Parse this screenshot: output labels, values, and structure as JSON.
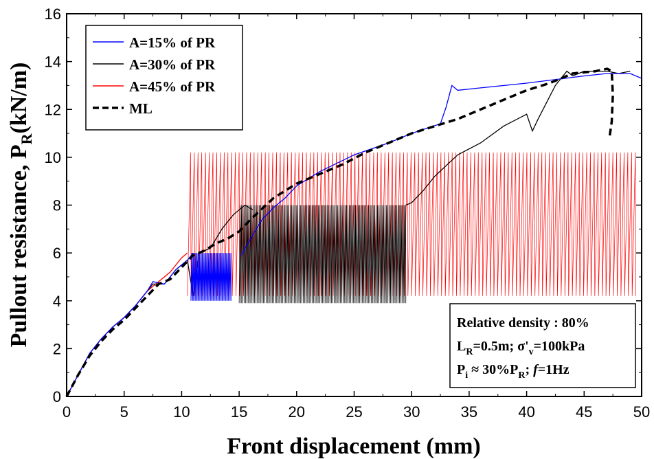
{
  "chart_data": {
    "type": "line",
    "xlabel": "Front displacement (mm)",
    "ylabel": {
      "main": "Pullout resistance, P",
      "sub": "R",
      "unit": "(kN/m)"
    },
    "xlim": [
      0,
      50
    ],
    "ylim": [
      0,
      16
    ],
    "xticks": [
      0,
      5,
      10,
      15,
      20,
      25,
      30,
      35,
      40,
      45,
      50
    ],
    "yticks": [
      0,
      2,
      4,
      6,
      8,
      10,
      12,
      14,
      16
    ],
    "grid": false,
    "legend_position": "top-left",
    "series": [
      {
        "name": "A=15% of PR",
        "color": "#0000ff",
        "style": "solid",
        "monotonic": [
          [
            0,
            0
          ],
          [
            1,
            0.9
          ],
          [
            2,
            1.8
          ],
          [
            3,
            2.4
          ],
          [
            4,
            2.9
          ],
          [
            5,
            3.3
          ],
          [
            6,
            3.8
          ],
          [
            7,
            4.4
          ],
          [
            7.5,
            4.8
          ],
          [
            8.5,
            4.7
          ],
          [
            9.5,
            5.3
          ],
          [
            10.5,
            5.7
          ],
          [
            11,
            6.0
          ]
        ],
        "cyclic": {
          "x_start": 10.8,
          "x_end": 14.3,
          "y_min": 4.0,
          "y_max": 6.0,
          "cycles": 45
        },
        "post": [
          [
            15.2,
            5.9
          ],
          [
            16,
            6.6
          ],
          [
            17,
            7.4
          ],
          [
            18,
            7.9
          ],
          [
            19,
            8.3
          ],
          [
            20,
            8.8
          ],
          [
            22,
            9.4
          ],
          [
            25,
            10.1
          ],
          [
            28,
            10.6
          ],
          [
            30,
            11.0
          ],
          [
            32.5,
            11.4
          ],
          [
            33,
            12.1
          ],
          [
            33.5,
            13.0
          ],
          [
            34,
            12.8
          ],
          [
            36,
            12.9
          ],
          [
            40,
            13.1
          ],
          [
            45,
            13.4
          ],
          [
            47,
            13.5
          ],
          [
            49,
            13.5
          ],
          [
            50,
            13.3
          ]
        ]
      },
      {
        "name": "A=30% of PR",
        "color": "#000000",
        "style": "solid",
        "monotonic": [
          [
            0,
            0
          ],
          [
            1,
            0.9
          ],
          [
            2,
            1.8
          ],
          [
            3,
            2.4
          ],
          [
            4,
            2.9
          ],
          [
            5,
            3.3
          ],
          [
            6,
            3.8
          ],
          [
            7,
            4.4
          ],
          [
            7.5,
            4.7
          ],
          [
            8.5,
            4.7
          ],
          [
            9.5,
            5.3
          ],
          [
            10.5,
            5.7
          ],
          [
            11,
            4.2
          ],
          [
            11.5,
            6.0
          ],
          [
            12.5,
            6.2
          ],
          [
            13.5,
            7.0
          ],
          [
            14.5,
            7.6
          ],
          [
            15.5,
            8.0
          ],
          [
            16.2,
            7.8
          ]
        ],
        "cyclic": {
          "x_start": 15.0,
          "x_end": 29.5,
          "y_min": 3.9,
          "y_max": 8.0,
          "cycles": 130
        },
        "post": [
          [
            29.5,
            8.0
          ],
          [
            30,
            8.1
          ],
          [
            31,
            8.6
          ],
          [
            32,
            9.2
          ],
          [
            34,
            10.1
          ],
          [
            36,
            10.6
          ],
          [
            38,
            11.3
          ],
          [
            40,
            11.8
          ],
          [
            40.5,
            11.1
          ],
          [
            41,
            11.6
          ],
          [
            42.5,
            13.0
          ],
          [
            43.5,
            13.6
          ],
          [
            44,
            13.4
          ],
          [
            45,
            13.6
          ],
          [
            47,
            13.6
          ],
          [
            48,
            13.5
          ],
          [
            49,
            13.6
          ]
        ]
      },
      {
        "name": "A=45% of PR",
        "color": "#ff0000",
        "style": "solid",
        "monotonic": [
          [
            0,
            0
          ],
          [
            1,
            0.9
          ],
          [
            2,
            1.8
          ],
          [
            3,
            2.4
          ],
          [
            4,
            2.9
          ],
          [
            5,
            3.3
          ],
          [
            6,
            3.8
          ],
          [
            7,
            4.4
          ],
          [
            8,
            4.8
          ],
          [
            9,
            5.2
          ],
          [
            10,
            5.8
          ],
          [
            10.5,
            6.0
          ]
        ],
        "cyclic": {
          "x_start": 10.5,
          "x_end": 49.5,
          "y_min": 4.2,
          "y_max": 10.2,
          "cycles": 120
        },
        "post": []
      },
      {
        "name": "ML",
        "color": "#000000",
        "style": "dashed",
        "points": [
          [
            0,
            0
          ],
          [
            1,
            0.9
          ],
          [
            2,
            1.7
          ],
          [
            3,
            2.3
          ],
          [
            4,
            2.8
          ],
          [
            5,
            3.2
          ],
          [
            6,
            3.7
          ],
          [
            7,
            4.2
          ],
          [
            8,
            4.7
          ],
          [
            9,
            4.9
          ],
          [
            10,
            5.4
          ],
          [
            11,
            5.9
          ],
          [
            12,
            6.1
          ],
          [
            13,
            6.4
          ],
          [
            14,
            6.6
          ],
          [
            15,
            6.9
          ],
          [
            16,
            7.4
          ],
          [
            18,
            8.3
          ],
          [
            20,
            8.9
          ],
          [
            22,
            9.3
          ],
          [
            24,
            9.7
          ],
          [
            26,
            10.2
          ],
          [
            28,
            10.6
          ],
          [
            30,
            11.0
          ],
          [
            32,
            11.3
          ],
          [
            34,
            11.6
          ],
          [
            36,
            12.0
          ],
          [
            38,
            12.4
          ],
          [
            40,
            12.8
          ],
          [
            42,
            13.1
          ],
          [
            44,
            13.5
          ],
          [
            46,
            13.6
          ],
          [
            47,
            13.7
          ],
          [
            47.4,
            13.6
          ],
          [
            47.5,
            12.6
          ],
          [
            47.4,
            11.5
          ],
          [
            47.2,
            10.8
          ]
        ]
      }
    ],
    "annotation": {
      "line1": "Relative density : 80%",
      "line2_a": "L",
      "line2_sub": "R",
      "line2_b": "=0.5m; σ'",
      "line2_sub2": "v",
      "line2_c": "=100kPa",
      "line3_a": "P",
      "line3_sub": "i",
      "line3_b": " ≈ 30%P",
      "line3_sub2": "R",
      "line3_c": "; ",
      "line3_f": "f",
      "line3_d": "=1Hz"
    }
  }
}
